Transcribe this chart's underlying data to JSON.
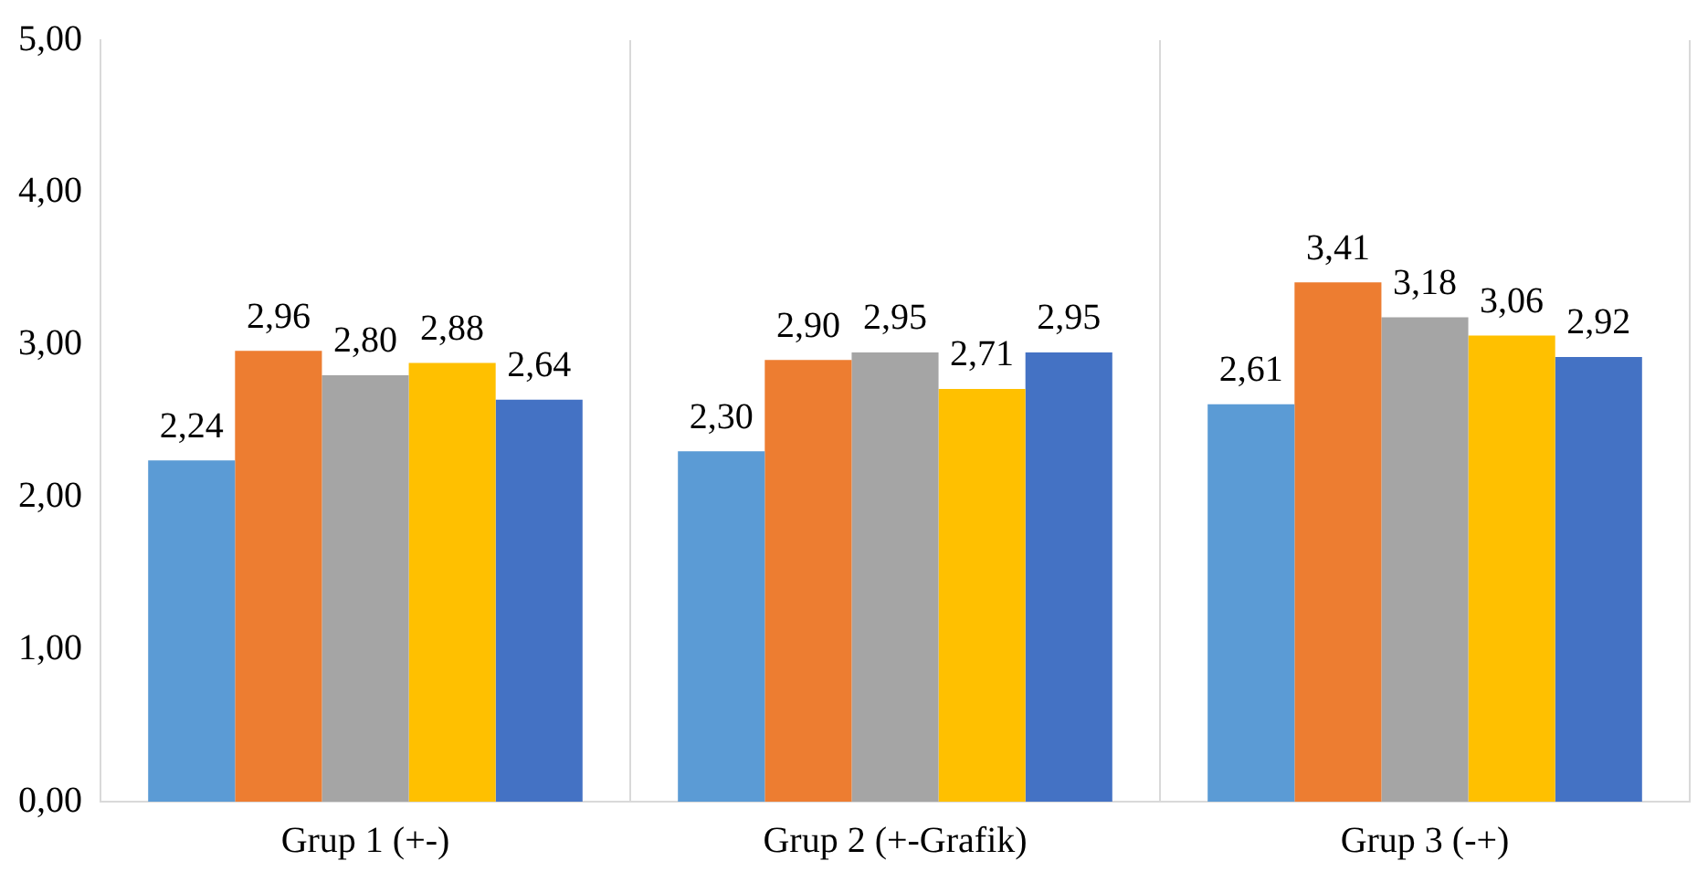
{
  "chart_data": {
    "type": "bar",
    "categories": [
      "Grup 1 (+-)",
      "Grup 2 (+-Grafik)",
      "Grup 3 (-+)"
    ],
    "series": [
      {
        "color": "#5b9bd5",
        "values": [
          2.24,
          2.3,
          2.61
        ],
        "value_labels": [
          "2,24",
          "2,30",
          "2,61"
        ]
      },
      {
        "color": "#ed7d31",
        "values": [
          2.96,
          2.9,
          3.41
        ],
        "value_labels": [
          "2,96",
          "2,90",
          "3,41"
        ]
      },
      {
        "color": "#a5a5a5",
        "values": [
          2.8,
          2.95,
          3.18
        ],
        "value_labels": [
          "2,80",
          "2,95",
          "3,18"
        ]
      },
      {
        "color": "#ffc000",
        "values": [
          2.88,
          2.71,
          3.06
        ],
        "value_labels": [
          "2,88",
          "2,71",
          "3,06"
        ]
      },
      {
        "color": "#4472c4",
        "values": [
          2.64,
          2.95,
          2.92
        ],
        "value_labels": [
          "2,64",
          "2,95",
          "2,92"
        ]
      }
    ],
    "ylim": [
      0,
      5
    ],
    "yticks": [
      {
        "value": 0,
        "label": "0,00"
      },
      {
        "value": 1,
        "label": "1,00"
      },
      {
        "value": 2,
        "label": "2,00"
      },
      {
        "value": 3,
        "label": "3,00"
      },
      {
        "value": 4,
        "label": "4,00"
      },
      {
        "value": 5,
        "label": "5,00"
      }
    ],
    "grid": "x",
    "legend": false
  }
}
